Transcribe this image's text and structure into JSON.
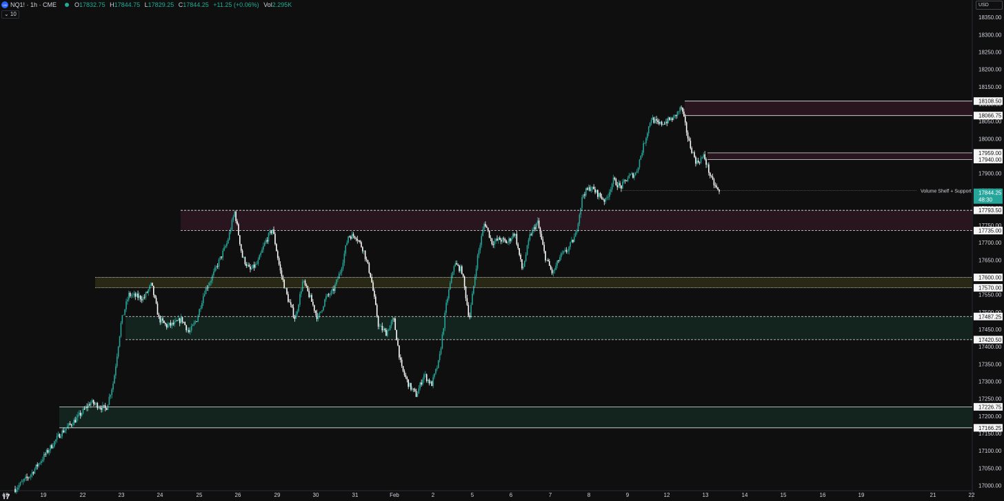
{
  "header": {
    "symbol_line": "NQ1! · 1h · CME",
    "open_label": "O",
    "open": "17832.75",
    "high_label": "H",
    "high": "17844.75",
    "low_label": "L",
    "low": "17829.25",
    "close_label": "C",
    "close": "17844.25",
    "change": "+11.25 (+0.06%)",
    "vol_label": "Vol",
    "vol": "2.295K",
    "indicator_toggle": "⌄ 10",
    "currency": "USD",
    "symbol_icon": "100"
  },
  "colors": {
    "background": "#0f0f0f",
    "up": "#26a69a",
    "down": "#ffffff",
    "resistance_zone": "#2a161f",
    "support_zone": "#142620",
    "chop_zone": "#2a2a16",
    "last_price_tag": "#26a69a"
  },
  "chart_data": {
    "type": "candlestick",
    "instrument": "NQ1!",
    "timeframe": "1h",
    "exchange": "CME",
    "ylim": [
      16985,
      18400
    ],
    "y_ticks": [
      "18350.00",
      "18300.00",
      "18250.00",
      "18200.00",
      "18150.00",
      "18100.00",
      "18050.00",
      "18000.00",
      "17950.00",
      "17900.00",
      "17850.00",
      "17800.00",
      "17750.00",
      "17700.00",
      "17650.00",
      "17600.00",
      "17550.00",
      "17500.00",
      "17450.00",
      "17400.00",
      "17350.00",
      "17300.00",
      "17250.00",
      "17200.00",
      "17150.00",
      "17100.00",
      "17050.00",
      "17000.00"
    ],
    "x_ticks": [
      "18",
      "19",
      "22",
      "23",
      "24",
      "25",
      "26",
      "29",
      "30",
      "31",
      "Feb",
      "2",
      "5",
      "6",
      "7",
      "8",
      "9",
      "12",
      "13",
      "14",
      "15",
      "16",
      "19",
      "21",
      "22"
    ],
    "price_path": [
      [
        0,
        16990
      ],
      [
        2,
        17030
      ],
      [
        4,
        17090
      ],
      [
        6,
        17150
      ],
      [
        8,
        17190
      ],
      [
        10,
        17240
      ],
      [
        12,
        17220
      ],
      [
        13,
        17300
      ],
      [
        14,
        17470
      ],
      [
        15,
        17550
      ],
      [
        17,
        17540
      ],
      [
        18,
        17580
      ],
      [
        19,
        17480
      ],
      [
        20,
        17460
      ],
      [
        21,
        17465
      ],
      [
        22,
        17480
      ],
      [
        23,
        17440
      ],
      [
        24,
        17480
      ],
      [
        25,
        17560
      ],
      [
        26,
        17600
      ],
      [
        27,
        17650
      ],
      [
        28,
        17700
      ],
      [
        29,
        17790
      ],
      [
        30,
        17660
      ],
      [
        31,
        17620
      ],
      [
        32,
        17640
      ],
      [
        33,
        17700
      ],
      [
        34,
        17740
      ],
      [
        35,
        17620
      ],
      [
        36,
        17540
      ],
      [
        37,
        17480
      ],
      [
        38,
        17590
      ],
      [
        39,
        17540
      ],
      [
        40,
        17480
      ],
      [
        41,
        17540
      ],
      [
        42,
        17560
      ],
      [
        43,
        17620
      ],
      [
        44,
        17720
      ],
      [
        45,
        17720
      ],
      [
        46,
        17680
      ],
      [
        47,
        17600
      ],
      [
        48,
        17460
      ],
      [
        49,
        17440
      ],
      [
        50,
        17480
      ],
      [
        51,
        17340
      ],
      [
        52,
        17290
      ],
      [
        53,
        17260
      ],
      [
        54,
        17320
      ],
      [
        55,
        17290
      ],
      [
        56,
        17360
      ],
      [
        57,
        17530
      ],
      [
        58,
        17640
      ],
      [
        59,
        17620
      ],
      [
        60,
        17480
      ],
      [
        61,
        17650
      ],
      [
        62,
        17760
      ],
      [
        63,
        17700
      ],
      [
        64,
        17710
      ],
      [
        65,
        17700
      ],
      [
        66,
        17730
      ],
      [
        67,
        17620
      ],
      [
        68,
        17720
      ],
      [
        69,
        17760
      ],
      [
        70,
        17660
      ],
      [
        71,
        17610
      ],
      [
        72,
        17660
      ],
      [
        73,
        17680
      ],
      [
        74,
        17720
      ],
      [
        75,
        17840
      ],
      [
        76,
        17860
      ],
      [
        77,
        17840
      ],
      [
        78,
        17820
      ],
      [
        79,
        17880
      ],
      [
        80,
        17860
      ],
      [
        81,
        17890
      ],
      [
        82,
        17900
      ],
      [
        83,
        17980
      ],
      [
        84,
        18060
      ],
      [
        85,
        18040
      ],
      [
        86,
        18050
      ],
      [
        87,
        18060
      ],
      [
        88,
        18090
      ],
      [
        89,
        17990
      ],
      [
        90,
        17930
      ],
      [
        91,
        17950
      ],
      [
        92,
        17880
      ],
      [
        93,
        17844.25
      ]
    ],
    "hlines": [
      {
        "price": 18108.5,
        "label": "18108.50",
        "style": "solid"
      },
      {
        "price": 18066.75,
        "label": "18066.75",
        "style": "solid"
      },
      {
        "price": 17959.0,
        "label": "17959.00",
        "style": "solid"
      },
      {
        "price": 17940.0,
        "label": "17940.00",
        "style": "solid"
      },
      {
        "price": 17793.5,
        "label": "17793.50",
        "style": "dashed"
      },
      {
        "price": 17735.0,
        "label": "17735.00",
        "style": "dashed"
      },
      {
        "price": 17600.0,
        "label": "17600.00",
        "style": "dotted"
      },
      {
        "price": 17570.0,
        "label": "17570.00",
        "style": "dotted"
      },
      {
        "price": 17487.25,
        "label": "17487.25",
        "style": "dashed"
      },
      {
        "price": 17420.5,
        "label": "17420.50",
        "style": "dashed"
      },
      {
        "price": 17226.75,
        "label": "17226.75",
        "style": "solid"
      },
      {
        "price": 17166.25,
        "label": "17166.25",
        "style": "solid"
      }
    ],
    "zones": [
      {
        "from": 18066.75,
        "to": 18108.5,
        "kind": "resistance"
      },
      {
        "from": 17940.0,
        "to": 17959.0,
        "kind": "resistance"
      },
      {
        "from": 17735.0,
        "to": 17793.5,
        "kind": "resistance"
      },
      {
        "from": 17570.0,
        "to": 17600.0,
        "kind": "chop"
      },
      {
        "from": 17420.5,
        "to": 17487.25,
        "kind": "support"
      },
      {
        "from": 17166.25,
        "to": 17226.75,
        "kind": "support"
      }
    ],
    "annotation": {
      "text": "Volume Shelf + Support",
      "price": 17850
    },
    "last_price": {
      "value": "17844.25",
      "countdown": "48:30",
      "price": 17844.25
    }
  }
}
